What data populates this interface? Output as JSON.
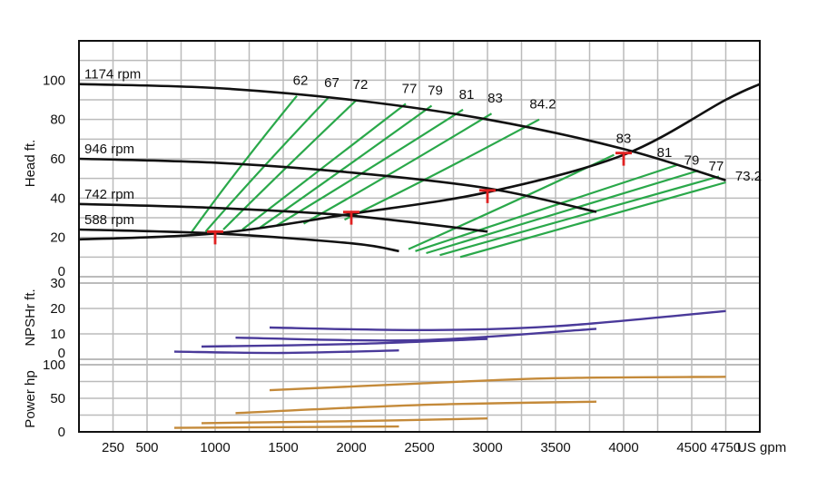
{
  "chart_data": {
    "type": "line",
    "x_unit": "US gpm",
    "x_ticks": [
      250,
      500,
      1000,
      1500,
      2000,
      2500,
      3000,
      3500,
      4000,
      4500,
      4750
    ],
    "x_tick_labels": [
      "250",
      "500",
      "1000",
      "1500",
      "2000",
      "2500",
      "3000",
      "3500",
      "4000",
      "4500",
      "4750"
    ],
    "xlim": [
      0,
      5000
    ],
    "grid": true,
    "panels": [
      {
        "id": "head",
        "ylabel": "Head ft.",
        "ylim": [
          0,
          120
        ],
        "y_ticks": [
          0,
          20,
          40,
          60,
          80,
          100
        ],
        "speed_curves": [
          {
            "name": "1174 rpm",
            "x": [
              0,
              1000,
              2000,
              3000,
              4000,
              4750
            ],
            "y": [
              98,
              96,
              90,
              80,
              65,
              49
            ]
          },
          {
            "name": "946 rpm",
            "x": [
              0,
              1000,
              2000,
              3000,
              3800
            ],
            "y": [
              60,
              58,
              53,
              45,
              33
            ]
          },
          {
            "name": "742 rpm",
            "x": [
              0,
              1000,
              2000,
              3000
            ],
            "y": [
              37,
              35,
              31,
              23
            ]
          },
          {
            "name": "588 rpm",
            "x": [
              0,
              1000,
              2000,
              2350
            ],
            "y": [
              24,
              22,
              17,
              13
            ]
          }
        ],
        "system_curve": {
          "x": [
            0,
            1000,
            2000,
            3000,
            4000,
            4750,
            5000
          ],
          "y": [
            19,
            22,
            32,
            43,
            62,
            90,
            98
          ]
        },
        "operating_points": [
          {
            "x": 1000,
            "y": 22
          },
          {
            "x": 2000,
            "y": 32
          },
          {
            "x": 3000,
            "y": 43
          },
          {
            "x": 4000,
            "y": 62
          }
        ],
        "efficiency_left": [
          {
            "label": "62",
            "x": [
              820,
              1600
            ],
            "y": [
              22,
              92
            ]
          },
          {
            "label": "67",
            "x": [
              930,
              1830
            ],
            "y": [
              23,
              91
            ]
          },
          {
            "label": "72",
            "x": [
              1060,
              2040
            ],
            "y": [
              24,
              90
            ]
          },
          {
            "label": "77",
            "x": [
              1200,
              2400
            ],
            "y": [
              24,
              88
            ]
          },
          {
            "label": "79",
            "x": [
              1330,
              2590
            ],
            "y": [
              25,
              87
            ]
          },
          {
            "label": "81",
            "x": [
              1450,
              2820
            ],
            "y": [
              26,
              85
            ]
          },
          {
            "label": "83",
            "x": [
              1650,
              3030
            ],
            "y": [
              27,
              83
            ]
          },
          {
            "label": "84.2",
            "x": [
              1950,
              3380
            ],
            "y": [
              29,
              80
            ]
          }
        ],
        "efficiency_right": [
          {
            "label": "83",
            "x": [
              2420,
              3930
            ],
            "y": [
              14,
              62
            ]
          },
          {
            "label": "81",
            "x": [
              2470,
              4400
            ],
            "y": [
              13,
              57
            ]
          },
          {
            "label": "79",
            "x": [
              2550,
              4550
            ],
            "y": [
              12,
              54
            ]
          },
          {
            "label": "77",
            "x": [
              2650,
              4700
            ],
            "y": [
              11,
              51
            ]
          },
          {
            "label": "73.2",
            "x": [
              2800,
              4750
            ],
            "y": [
              10,
              48
            ]
          }
        ]
      },
      {
        "id": "npshr",
        "ylabel": "NPSHr ft.",
        "ylim": [
          0,
          30
        ],
        "y_ticks": [
          0,
          10,
          20,
          30
        ],
        "series": [
          {
            "x": [
              1400,
              2500,
              3500,
              4750
            ],
            "y": [
              12.5,
              11.5,
              13,
              19
            ]
          },
          {
            "x": [
              1150,
              2500,
              3800
            ],
            "y": [
              8.5,
              7.5,
              12
            ]
          },
          {
            "x": [
              900,
              2000,
              3000
            ],
            "y": [
              5,
              6,
              8
            ]
          },
          {
            "x": [
              700,
              1500,
              2350
            ],
            "y": [
              3,
              2.5,
              3.5
            ]
          }
        ]
      },
      {
        "id": "power",
        "ylabel": "Power hp",
        "ylim": [
          0,
          100
        ],
        "y_ticks": [
          0,
          50,
          100
        ],
        "series": [
          {
            "x": [
              1400,
              2500,
              3500,
              4750
            ],
            "y": [
              62,
              72,
              80,
              82
            ]
          },
          {
            "x": [
              1150,
              2500,
              3800
            ],
            "y": [
              28,
              40,
              45
            ]
          },
          {
            "x": [
              900,
              2000,
              3000
            ],
            "y": [
              13,
              16,
              20
            ]
          },
          {
            "x": [
              700,
              1500,
              2350
            ],
            "y": [
              6,
              7,
              8
            ]
          }
        ]
      }
    ]
  },
  "colors": {
    "speed_curve": "#111111",
    "system_curve": "#111111",
    "efficiency": "#2aa84a",
    "npshr": "#4a3a9a",
    "power": "#c48a3a",
    "operating_point": "#e02020",
    "grid": "#bbbbbb"
  }
}
